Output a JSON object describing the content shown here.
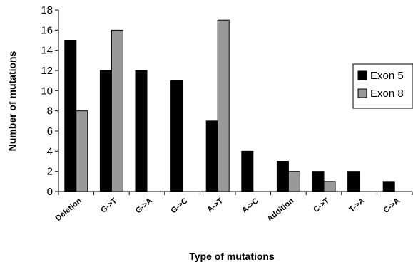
{
  "chart_data": {
    "type": "bar",
    "categories": [
      "Deletion",
      "G->T",
      "G->A",
      "G->C",
      "A->T",
      "A->C",
      "Addition",
      "C->T",
      "T->A",
      "C->A"
    ],
    "series": [
      {
        "name": "Exon 5",
        "values": [
          15,
          12,
          12,
          11,
          7,
          4,
          3,
          2,
          2,
          1
        ],
        "color": "#000000"
      },
      {
        "name": "Exon 8",
        "values": [
          8,
          16,
          0,
          0,
          17,
          0,
          2,
          1,
          0,
          0
        ],
        "color": "#999999"
      }
    ],
    "xlabel": "Type of mutations",
    "ylabel": "Number of mutations",
    "ylim": [
      0,
      18
    ],
    "yticks": [
      0,
      2,
      4,
      6,
      8,
      10,
      12,
      14,
      16,
      18
    ],
    "grid": false,
    "legend_position": "right"
  }
}
